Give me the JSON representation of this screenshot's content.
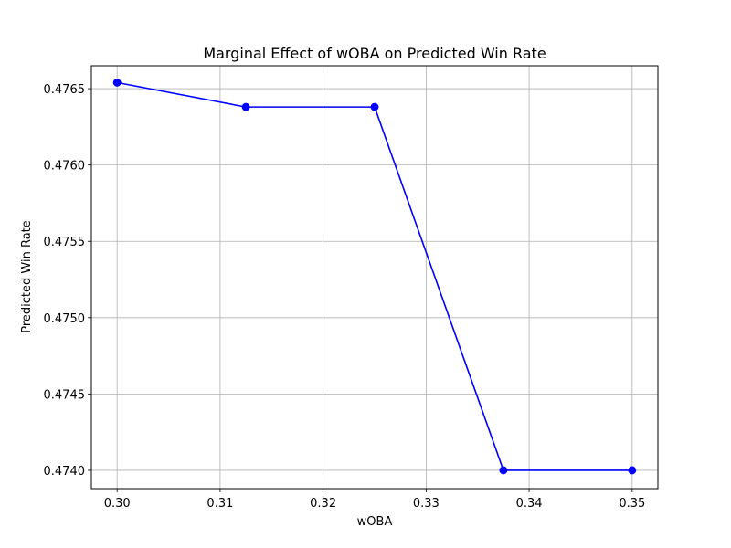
{
  "chart_data": {
    "type": "line",
    "title": "Marginal Effect of wOBA on Predicted Win Rate",
    "xlabel": "wOBA",
    "ylabel": "Predicted Win Rate",
    "x": [
      0.3,
      0.3125,
      0.325,
      0.3375,
      0.35
    ],
    "series": [
      {
        "values": [
          0.47654,
          0.47638,
          0.47638,
          0.474,
          0.474
        ],
        "color": "#0000ff",
        "marker": "circle"
      }
    ],
    "xlim": [
      0.2975,
      0.3525
    ],
    "ylim": [
      0.47388,
      0.47665
    ],
    "xticks": [
      0.3,
      0.31,
      0.32,
      0.33,
      0.34,
      0.35
    ],
    "xtick_labels": [
      "0.30",
      "0.31",
      "0.32",
      "0.33",
      "0.34",
      "0.35"
    ],
    "yticks": [
      0.474,
      0.4745,
      0.475,
      0.4755,
      0.476,
      0.4765
    ],
    "ytick_labels": [
      "0.4740",
      "0.4745",
      "0.4750",
      "0.4755",
      "0.4760",
      "0.4765"
    ],
    "grid": true,
    "legend": false
  }
}
